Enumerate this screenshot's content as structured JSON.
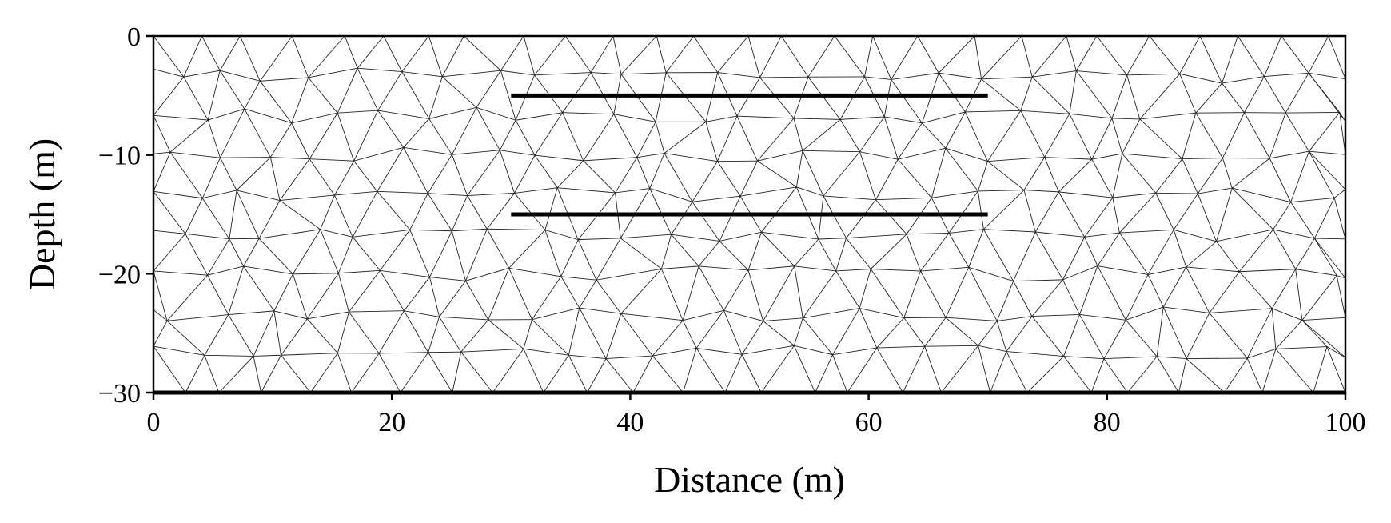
{
  "chart_data": {
    "type": "mesh",
    "title": "",
    "xlabel": "Distance (m)",
    "ylabel": "Depth (m)",
    "xlim": [
      0,
      100
    ],
    "ylim": [
      -30,
      0
    ],
    "xticks": [
      0,
      20,
      40,
      60,
      80,
      100
    ],
    "xtick_labels": [
      "0",
      "20",
      "40",
      "60",
      "80",
      "100"
    ],
    "yticks": [
      0,
      -10,
      -20,
      -30
    ],
    "ytick_labels": [
      "0",
      "−10",
      "−20",
      "−30"
    ],
    "mesh": {
      "element": "triangle",
      "approx_edge_length_m": 3.8
    },
    "interfaces": [
      {
        "x": [
          30,
          70
        ],
        "y": [
          -5,
          -5
        ]
      },
      {
        "x": [
          30,
          70
        ],
        "y": [
          -15,
          -15
        ]
      },
      {
        "x": [
          0,
          100
        ],
        "y": [
          -30,
          -30
        ]
      }
    ],
    "grid": false,
    "legend": "none",
    "colors": {
      "mesh": "#222222",
      "interfaces": "#000000"
    }
  }
}
